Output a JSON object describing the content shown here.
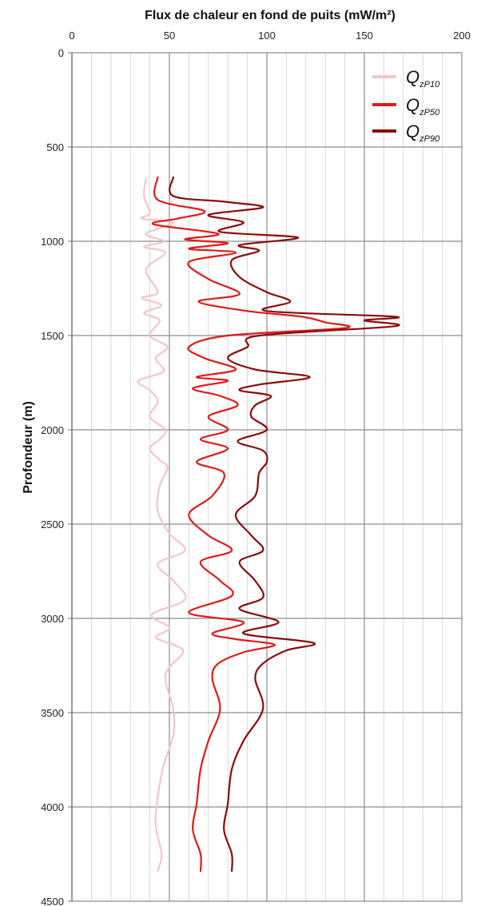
{
  "chart_data": {
    "type": "line",
    "orientation": "depth-profile",
    "title": "",
    "xlabel": "Flux de chaleur en fond de puits (mW/m²)",
    "ylabel": "Profondeur (m)",
    "xlim": [
      0,
      200
    ],
    "ylim": [
      0,
      4500
    ],
    "y_inverted": true,
    "x_axis_position": "top",
    "x_ticks": [
      "0",
      "50",
      "100",
      "150",
      "200"
    ],
    "y_ticks": [
      "0",
      "500",
      "1000",
      "1500",
      "2000",
      "2500",
      "3000",
      "3500",
      "4000",
      "4500"
    ],
    "grid": true,
    "legend_position": "top-right",
    "series": [
      {
        "name_main": "Q",
        "name_sub": "zP10",
        "color": "#f4c6c6",
        "points": [
          [
            38,
            670
          ],
          [
            37,
            760
          ],
          [
            40,
            850
          ],
          [
            36,
            880
          ],
          [
            52,
            900
          ],
          [
            38,
            960
          ],
          [
            47,
            1000
          ],
          [
            37,
            1030
          ],
          [
            48,
            1060
          ],
          [
            38,
            1150
          ],
          [
            44,
            1270
          ],
          [
            36,
            1300
          ],
          [
            46,
            1340
          ],
          [
            37,
            1380
          ],
          [
            45,
            1420
          ],
          [
            40,
            1500
          ],
          [
            49,
            1560
          ],
          [
            43,
            1620
          ],
          [
            47,
            1690
          ],
          [
            34,
            1740
          ],
          [
            40,
            1790
          ],
          [
            44,
            1850
          ],
          [
            40,
            1930
          ],
          [
            48,
            2000
          ],
          [
            45,
            2050
          ],
          [
            40,
            2100
          ],
          [
            45,
            2160
          ],
          [
            49,
            2200
          ],
          [
            45,
            2300
          ],
          [
            44,
            2430
          ],
          [
            50,
            2550
          ],
          [
            58,
            2640
          ],
          [
            44,
            2710
          ],
          [
            52,
            2800
          ],
          [
            58,
            2900
          ],
          [
            41,
            2980
          ],
          [
            50,
            3050
          ],
          [
            43,
            3100
          ],
          [
            52,
            3140
          ],
          [
            57,
            3180
          ],
          [
            48,
            3300
          ],
          [
            52,
            3480
          ],
          [
            52,
            3620
          ],
          [
            47,
            3780
          ],
          [
            44,
            3950
          ],
          [
            43,
            4100
          ],
          [
            46,
            4250
          ],
          [
            44,
            4340
          ]
        ]
      },
      {
        "name_main": "Q",
        "name_sub": "zP50",
        "color": "#e01a1a",
        "points": [
          [
            44,
            660
          ],
          [
            44,
            780
          ],
          [
            68,
            840
          ],
          [
            54,
            880
          ],
          [
            42,
            910
          ],
          [
            75,
            960
          ],
          [
            58,
            990
          ],
          [
            80,
            1010
          ],
          [
            60,
            1040
          ],
          [
            84,
            1060
          ],
          [
            60,
            1110
          ],
          [
            70,
            1200
          ],
          [
            86,
            1280
          ],
          [
            65,
            1320
          ],
          [
            90,
            1370
          ],
          [
            118,
            1400
          ],
          [
            130,
            1430
          ],
          [
            140,
            1460
          ],
          [
            80,
            1500
          ],
          [
            60,
            1560
          ],
          [
            68,
            1620
          ],
          [
            84,
            1680
          ],
          [
            64,
            1720
          ],
          [
            80,
            1740
          ],
          [
            62,
            1780
          ],
          [
            76,
            1820
          ],
          [
            85,
            1870
          ],
          [
            70,
            1930
          ],
          [
            80,
            2000
          ],
          [
            66,
            2050
          ],
          [
            80,
            2100
          ],
          [
            64,
            2170
          ],
          [
            78,
            2230
          ],
          [
            72,
            2350
          ],
          [
            60,
            2450
          ],
          [
            70,
            2560
          ],
          [
            82,
            2640
          ],
          [
            66,
            2700
          ],
          [
            76,
            2800
          ],
          [
            82,
            2880
          ],
          [
            60,
            2970
          ],
          [
            88,
            3020
          ],
          [
            72,
            3080
          ],
          [
            84,
            3110
          ],
          [
            104,
            3140
          ],
          [
            88,
            3180
          ],
          [
            75,
            3240
          ],
          [
            72,
            3320
          ],
          [
            76,
            3480
          ],
          [
            70,
            3650
          ],
          [
            66,
            3800
          ],
          [
            64,
            3980
          ],
          [
            62,
            4120
          ],
          [
            66,
            4250
          ],
          [
            66,
            4340
          ]
        ]
      },
      {
        "name_main": "Q",
        "name_sub": "zP90",
        "color": "#8b0b0b",
        "points": [
          [
            52,
            660
          ],
          [
            52,
            760
          ],
          [
            78,
            790
          ],
          [
            98,
            820
          ],
          [
            70,
            860
          ],
          [
            88,
            900
          ],
          [
            76,
            950
          ],
          [
            116,
            980
          ],
          [
            86,
            1020
          ],
          [
            96,
            1050
          ],
          [
            82,
            1100
          ],
          [
            86,
            1190
          ],
          [
            100,
            1270
          ],
          [
            112,
            1320
          ],
          [
            100,
            1370
          ],
          [
            166,
            1400
          ],
          [
            150,
            1420
          ],
          [
            166,
            1450
          ],
          [
            96,
            1500
          ],
          [
            90,
            1560
          ],
          [
            80,
            1620
          ],
          [
            94,
            1680
          ],
          [
            122,
            1720
          ],
          [
            96,
            1760
          ],
          [
            86,
            1790
          ],
          [
            102,
            1820
          ],
          [
            94,
            1870
          ],
          [
            92,
            1930
          ],
          [
            100,
            2000
          ],
          [
            85,
            2060
          ],
          [
            98,
            2110
          ],
          [
            100,
            2170
          ],
          [
            96,
            2230
          ],
          [
            94,
            2350
          ],
          [
            84,
            2450
          ],
          [
            92,
            2560
          ],
          [
            98,
            2640
          ],
          [
            86,
            2700
          ],
          [
            94,
            2800
          ],
          [
            98,
            2890
          ],
          [
            86,
            2950
          ],
          [
            106,
            3020
          ],
          [
            88,
            3080
          ],
          [
            124,
            3130
          ],
          [
            110,
            3170
          ],
          [
            98,
            3240
          ],
          [
            94,
            3320
          ],
          [
            98,
            3480
          ],
          [
            88,
            3650
          ],
          [
            82,
            3800
          ],
          [
            80,
            3980
          ],
          [
            78,
            4120
          ],
          [
            82,
            4250
          ],
          [
            82,
            4340
          ]
        ]
      }
    ]
  }
}
